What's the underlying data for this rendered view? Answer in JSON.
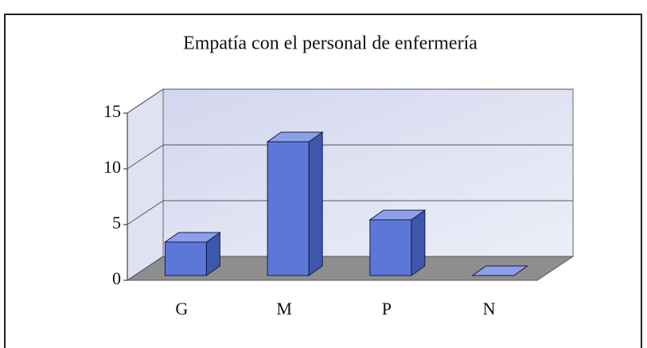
{
  "chart_data": {
    "type": "bar3d",
    "title": "Empatía con el personal de enfermería",
    "categories": [
      "G",
      "M",
      "P",
      "N"
    ],
    "values": [
      3,
      12,
      5,
      0
    ],
    "color": "#5b78d8",
    "ylim": [
      0,
      15
    ],
    "yticks": [
      0,
      5,
      10,
      15
    ],
    "grid": true
  }
}
